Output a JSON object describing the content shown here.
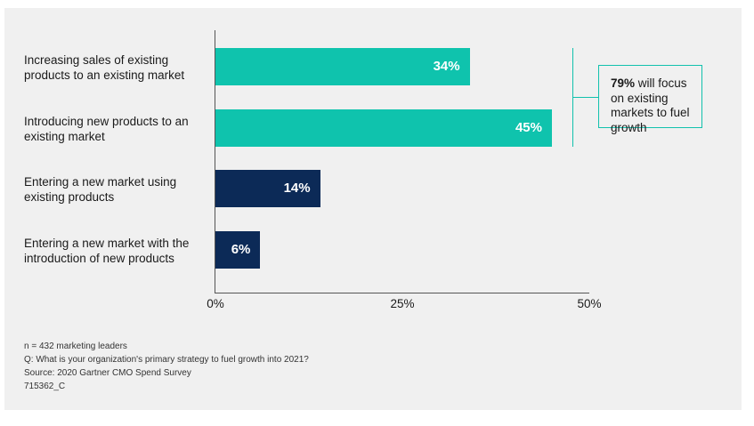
{
  "colors": {
    "existing_markets": "#0fc3ad",
    "new_market": "#0c2a57",
    "panel_bg": "#f0f0f0"
  },
  "chart_data": {
    "type": "bar",
    "orientation": "horizontal",
    "categories": [
      "Increasing sales of existing products to an existing market",
      "Introducing new products to an existing market",
      "Entering a new market using existing products",
      "Entering a new market with the introduction of new products"
    ],
    "values": [
      34,
      45,
      14,
      6
    ],
    "value_labels": [
      "34%",
      "45%",
      "14%",
      "6%"
    ],
    "bar_groups": [
      "existing_markets",
      "existing_markets",
      "new_market",
      "new_market"
    ],
    "xlim": [
      0,
      50
    ],
    "xticks": [
      0,
      25,
      50
    ],
    "xtick_labels": [
      "0%",
      "25%",
      "50%"
    ],
    "grid": false,
    "annotation": {
      "bold": "79%",
      "rest": " will focus on existing markets to fuel growth"
    }
  },
  "notes": [
    "n = 432 marketing leaders",
    "Q: What is your organization's primary strategy to fuel growth into 2021?",
    "Source: 2020 Gartner CMO Spend Survey",
    "715362_C"
  ]
}
